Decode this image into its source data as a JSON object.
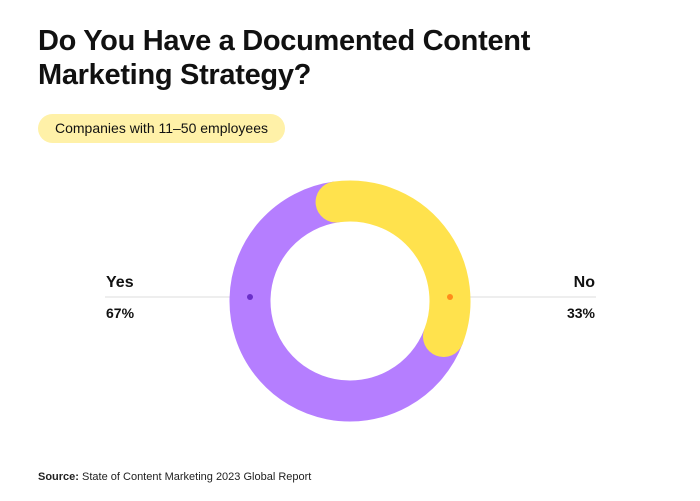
{
  "title": "Do You Have a Documented Content Marketing Strategy?",
  "subtitle": "Companies with 11–50 employees",
  "colors": {
    "yes": "#B57EFF",
    "no": "#FFE24D",
    "yes_dot": "#6A2FC8",
    "no_dot": "#FF8C1A",
    "subtitle_bg": "#FFF1A8"
  },
  "chart_data": {
    "type": "pie",
    "donut": true,
    "slices": [
      {
        "label": "Yes",
        "value": 67,
        "display": "67%"
      },
      {
        "label": "No",
        "value": 33,
        "display": "33%"
      }
    ]
  },
  "source": {
    "label": "Source:",
    "text": "State of Content Marketing 2023 Global Report"
  }
}
